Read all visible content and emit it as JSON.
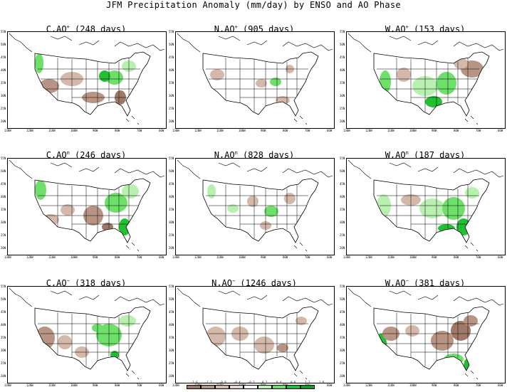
{
  "title": "JFM Precipitation Anomaly (mm/day) by ENSO and AO Phase",
  "panels": [
    {
      "title": "C,AO",
      "sup": "+",
      "days": "(248 days)"
    },
    {
      "title": "N,AO",
      "sup": "+",
      "days": "(905 days)"
    },
    {
      "title": "W,AO",
      "sup": "+",
      "days": "(153 days)"
    },
    {
      "title": "C,AO",
      "sup": "n",
      "days": "(246 days)"
    },
    {
      "title": "N,AO",
      "sup": "n",
      "days": "(828 days)"
    },
    {
      "title": "W,AO",
      "sup": "n",
      "days": "(187 days)"
    },
    {
      "title": "C,AO",
      "sup": "−",
      "days": "(318 days)"
    },
    {
      "title": "N,AO",
      "sup": "−",
      "days": "(1246 days)"
    },
    {
      "title": "W,AO",
      "sup": "−",
      "days": "(381 days)"
    }
  ],
  "colors": {
    "dry_strong": "#a07868",
    "dry_mid": "#b89484",
    "dry_light": "#d4b8aa",
    "wet_light": "#b8f0b0",
    "wet_mid": "#6ee06a",
    "wet_strong": "#22c030",
    "wet_dark": "#10a020"
  },
  "legend": {
    "labels": [
      "-1.6",
      "-1.2",
      "-0.8",
      "-0.4",
      "-0.2",
      "0.2",
      "0.4",
      "0.8",
      "1.2",
      "1.6"
    ]
  }
}
